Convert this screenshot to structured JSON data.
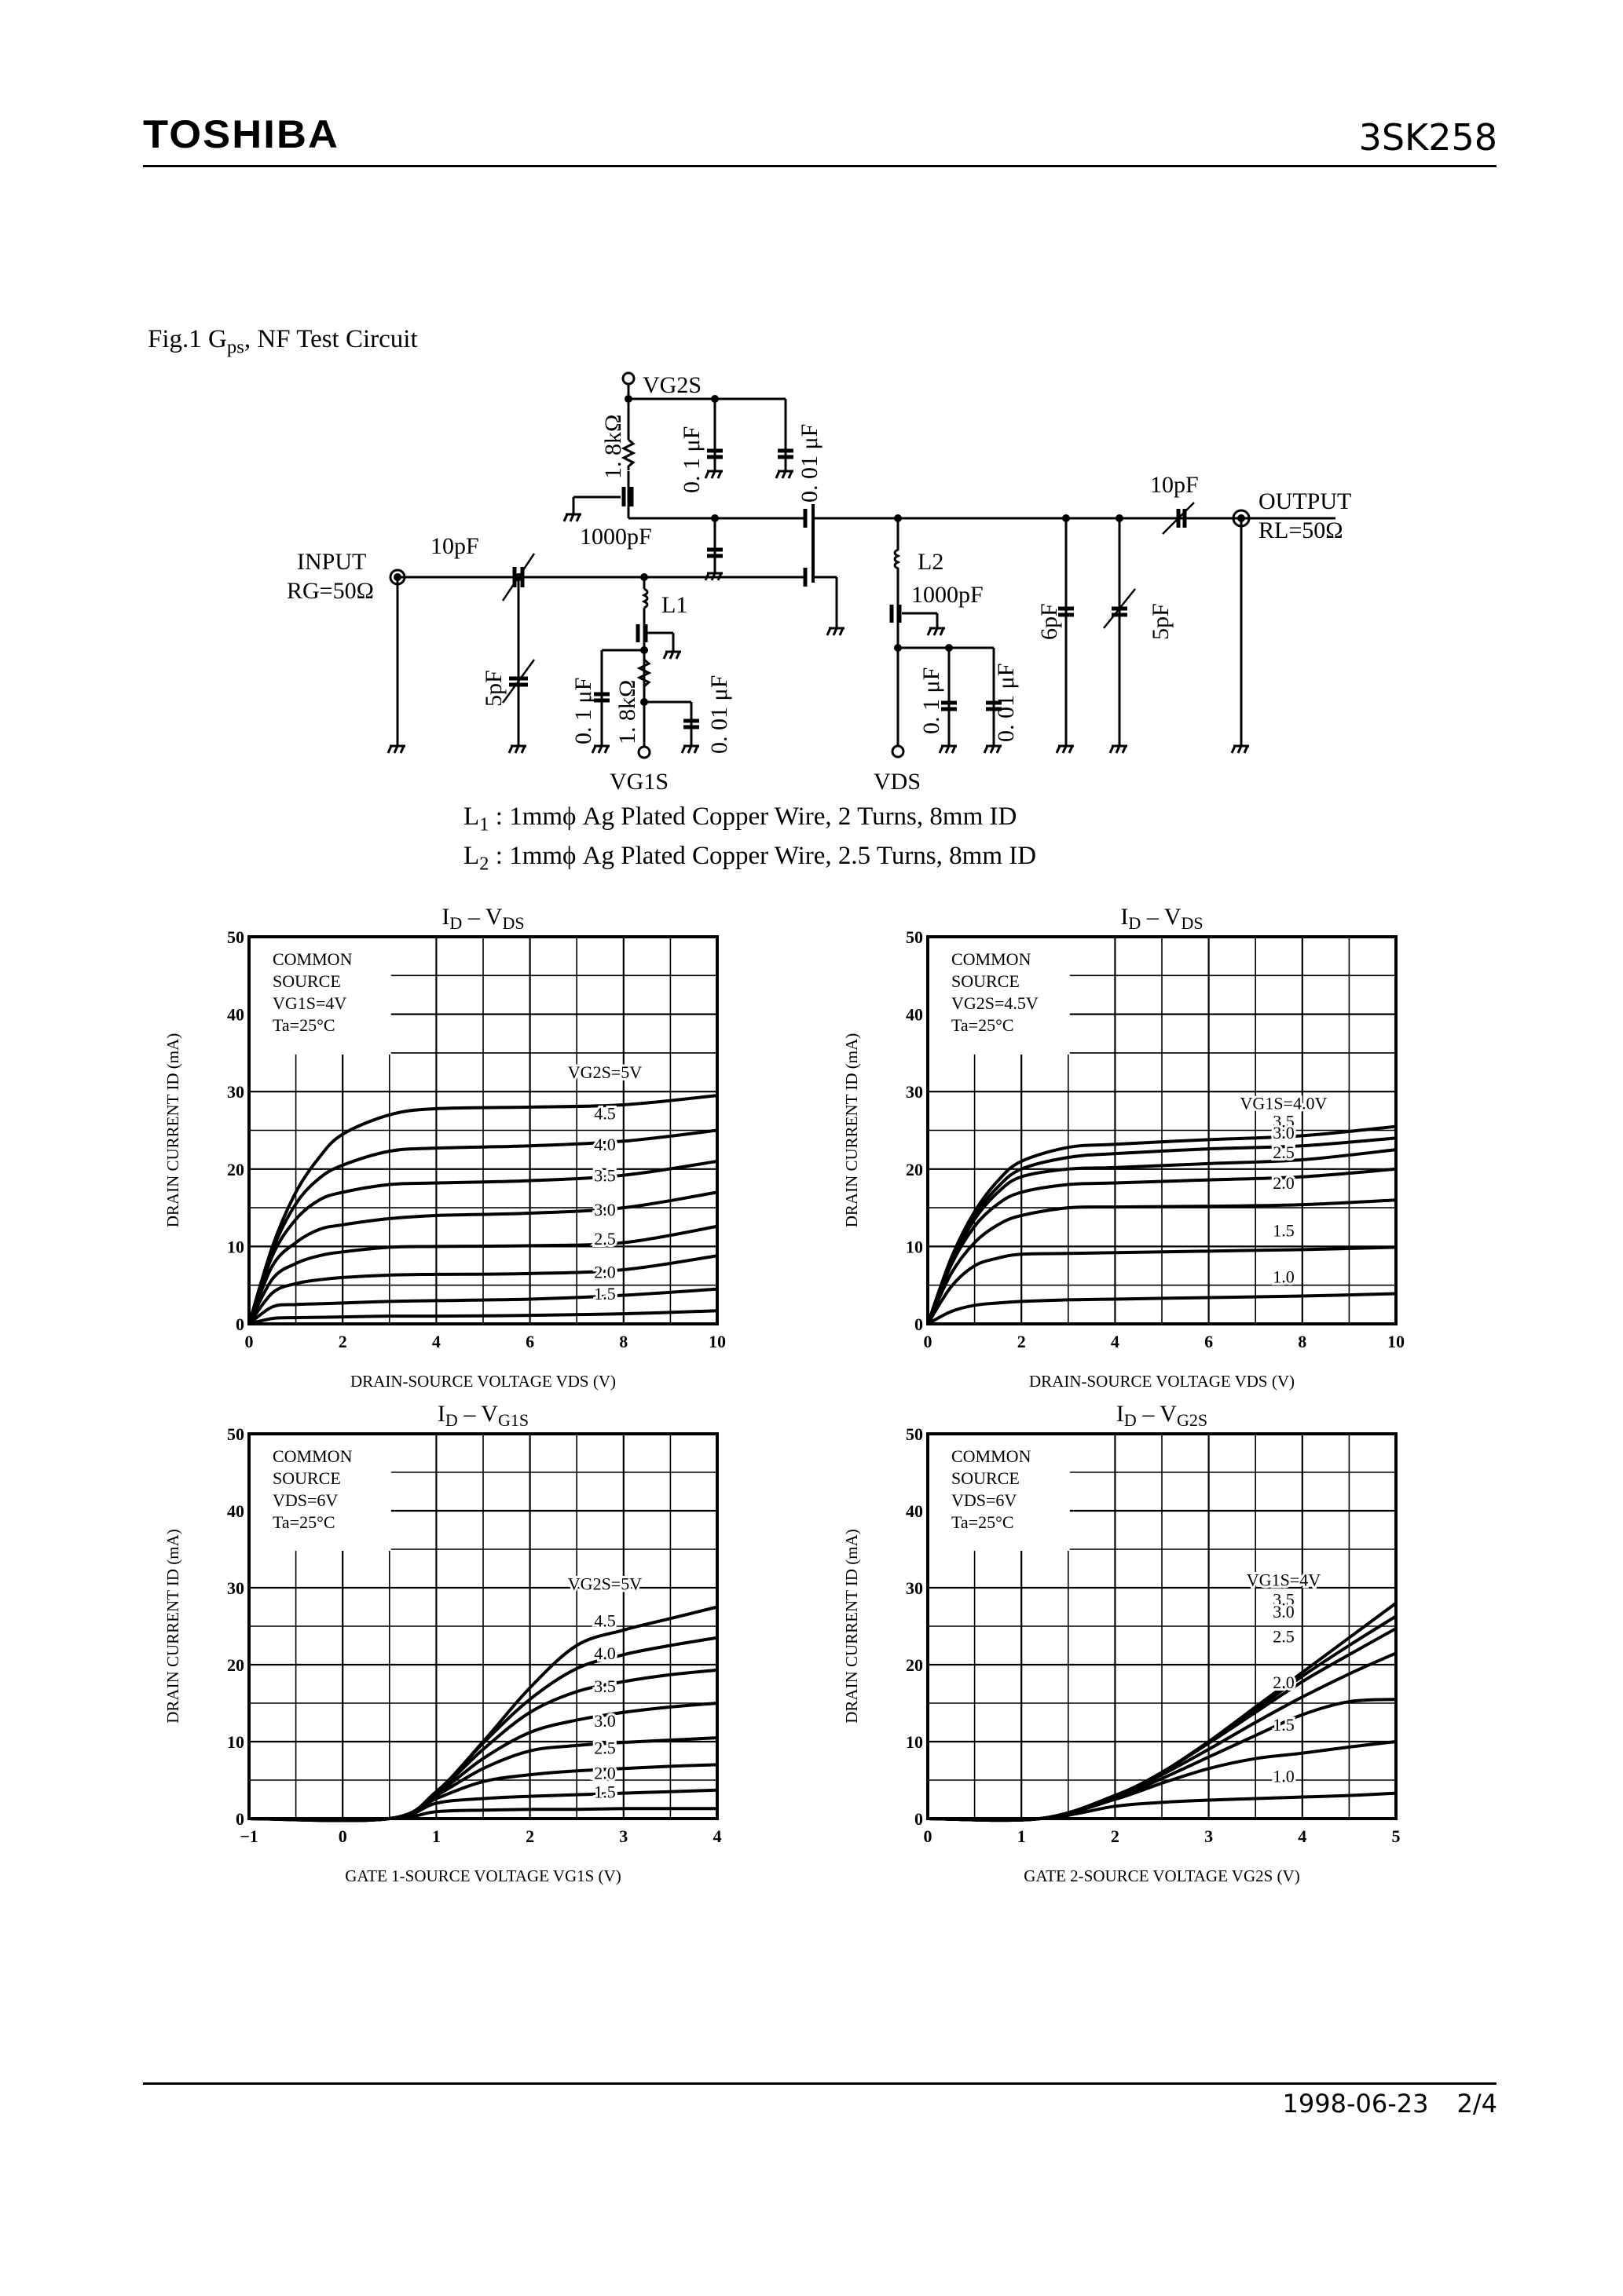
{
  "header": {
    "brand": "TOSHIBA",
    "part_number": "3SK258"
  },
  "figure": {
    "title": "Fig.1 Gps, NF Test Circuit",
    "title_main": "Fig.1 G",
    "title_sub": "ps",
    "title_rest": ", NF Test Circuit",
    "labels": {
      "input": "INPUT",
      "rg": "RG=50Ω",
      "output": "OUTPUT",
      "rl": "RL=50Ω",
      "vg2s": "VG2S",
      "vg1s": "VG1S",
      "vds": "VDS",
      "c_in": "10pF",
      "c_out": "10pF",
      "c_1000_top": "1000pF",
      "c_1000_bot": "1000pF",
      "r_top": "1. 8kΩ",
      "r_bot": "1. 8kΩ",
      "c01_top": "0. 1 μF",
      "c001_top": "0. 01 μF",
      "c01_g1": "0. 1 μF",
      "c001_g1": "0. 01 μF",
      "c01_d": "0. 1 μF",
      "c001_d": "0. 01 μF",
      "c5_in": "5pF",
      "c6_out": "6pF",
      "c5_out": "5pF",
      "l1": "L1",
      "l2": "L2"
    },
    "notes": [
      {
        "sym": "L",
        "sub": "1",
        "text": " : 1mmϕ Ag Plated Copper Wire, 2 Turns, 8mm ID"
      },
      {
        "sym": "L",
        "sub": "2",
        "text": " : 1mmϕ Ag Plated Copper Wire, 2.5 Turns, 8mm ID"
      }
    ]
  },
  "chart_data": [
    {
      "id": "id_vds_vg2s",
      "type": "line",
      "title": "ID – VDS",
      "title_main": "I",
      "title_sub1": "D",
      "title_mid": " – V",
      "title_sub2": "DS",
      "xlabel": "DRAIN-SOURCE VOLTAGE VDS (V)",
      "ylabel": "DRAIN CURRENT ID (mA)",
      "xlim": [
        0,
        10
      ],
      "ylim": [
        0,
        50
      ],
      "xticks": [
        0,
        2,
        4,
        6,
        8,
        10
      ],
      "yticks": [
        0,
        10,
        20,
        30,
        40,
        50
      ],
      "grid": true,
      "conditions": [
        "COMMON",
        "SOURCE",
        "VG1S=4V",
        "Ta=25°C"
      ],
      "x": [
        0,
        0.5,
        1,
        1.5,
        2,
        3,
        4,
        6,
        8,
        10
      ],
      "series": [
        {
          "name": "VG2S=5V",
          "label": "VG2S=5V",
          "values": [
            0,
            10,
            17,
            21.5,
            24.5,
            27,
            27.8,
            28,
            28.3,
            29.5
          ]
        },
        {
          "name": "4.5",
          "label": "4.5",
          "values": [
            0,
            9.5,
            15.5,
            18.8,
            20.5,
            22.3,
            22.7,
            23,
            23.6,
            25
          ]
        },
        {
          "name": "4.0",
          "label": "4.0",
          "values": [
            0,
            8.8,
            13.5,
            16,
            17,
            18,
            18.2,
            18.5,
            19.2,
            21
          ]
        },
        {
          "name": "3.5",
          "label": "3.5",
          "values": [
            0,
            7.5,
            10.5,
            12.2,
            12.8,
            13.6,
            14,
            14.3,
            15,
            17
          ]
        },
        {
          "name": "3.0",
          "label": "3.0",
          "values": [
            0,
            5.8,
            7.8,
            8.8,
            9.3,
            9.9,
            10,
            10.1,
            10.5,
            12.6
          ]
        },
        {
          "name": "2.5",
          "label": "2.5",
          "values": [
            0,
            4,
            5.2,
            5.7,
            6,
            6.3,
            6.4,
            6.5,
            7,
            8.8
          ]
        },
        {
          "name": "2.0",
          "label": "2.0",
          "values": [
            0,
            2.2,
            2.5,
            2.6,
            2.7,
            2.9,
            3,
            3.2,
            3.7,
            4.5
          ]
        },
        {
          "name": "1.5",
          "label": "1.5",
          "values": [
            0,
            0.7,
            0.8,
            0.85,
            0.9,
            1,
            1,
            1.1,
            1.3,
            1.7
          ]
        }
      ]
    },
    {
      "id": "id_vds_vg1s",
      "type": "line",
      "title": "ID – VDS",
      "title_main": "I",
      "title_sub1": "D",
      "title_mid": " – V",
      "title_sub2": "DS",
      "xlabel": "DRAIN-SOURCE VOLTAGE VDS (V)",
      "ylabel": "DRAIN CURRENT ID (mA)",
      "xlim": [
        0,
        10
      ],
      "ylim": [
        0,
        50
      ],
      "xticks": [
        0,
        2,
        4,
        6,
        8,
        10
      ],
      "yticks": [
        0,
        10,
        20,
        30,
        40,
        50
      ],
      "grid": true,
      "conditions": [
        "COMMON",
        "SOURCE",
        "VG2S=4.5V",
        "Ta=25°C"
      ],
      "x": [
        0,
        0.5,
        1,
        1.5,
        2,
        3,
        4,
        6,
        8,
        10
      ],
      "series": [
        {
          "name": "VG1S=4.0V",
          "label": "VG1S=4.0V",
          "values": [
            0,
            8.5,
            14.5,
            18.5,
            21,
            22.8,
            23.2,
            23.8,
            24.3,
            25.5
          ]
        },
        {
          "name": "3.5",
          "label": "3.5",
          "values": [
            0,
            8.3,
            14,
            17.7,
            20,
            21.5,
            22,
            22.6,
            23,
            24
          ]
        },
        {
          "name": "3.0",
          "label": "3.0",
          "values": [
            0,
            8,
            13.5,
            17,
            19,
            20,
            20.2,
            20.7,
            21.2,
            22.5
          ]
        },
        {
          "name": "2.5",
          "label": "2.5",
          "values": [
            0,
            7.6,
            12.6,
            15.5,
            17,
            18,
            18.2,
            18.6,
            19,
            20
          ]
        },
        {
          "name": "2.0",
          "label": "2.0",
          "values": [
            0,
            6.5,
            10.5,
            12.8,
            14,
            15,
            15.1,
            15.2,
            15.4,
            16
          ]
        },
        {
          "name": "1.5",
          "label": "1.5",
          "values": [
            0,
            4.8,
            7.5,
            8.5,
            9,
            9.1,
            9.2,
            9.4,
            9.6,
            9.9
          ]
        },
        {
          "name": "1.0",
          "label": "1.0",
          "values": [
            0,
            1.6,
            2.4,
            2.7,
            2.9,
            3.1,
            3.2,
            3.4,
            3.6,
            3.9
          ]
        }
      ]
    },
    {
      "id": "id_vg1s",
      "type": "line",
      "title": "ID – VG1S",
      "title_main": "I",
      "title_sub1": "D",
      "title_mid": " – V",
      "title_sub2": "G1S",
      "xlabel": "GATE 1-SOURCE VOLTAGE VG1S (V)",
      "ylabel": "DRAIN CURRENT ID (mA)",
      "xlim": [
        -1,
        4
      ],
      "ylim": [
        0,
        50
      ],
      "xticks": [
        -1,
        0,
        1,
        2,
        3,
        4
      ],
      "yticks": [
        0,
        10,
        20,
        30,
        40,
        50
      ],
      "grid": true,
      "conditions": [
        "COMMON",
        "SOURCE",
        "VDS=6V",
        "Ta=25°C"
      ],
      "x": [
        -1,
        0.5,
        1,
        1.5,
        2,
        2.5,
        3,
        3.5,
        4
      ],
      "series": [
        {
          "name": "VG2S=5V",
          "label": "VG2S=5V",
          "values": [
            0,
            0,
            3.5,
            10,
            17,
            22.5,
            24.5,
            26,
            27.5
          ]
        },
        {
          "name": "4.5",
          "label": "4.5",
          "values": [
            0,
            0,
            3.5,
            9.8,
            15.5,
            19.5,
            21.3,
            22.5,
            23.5
          ]
        },
        {
          "name": "4.0",
          "label": "4.0",
          "values": [
            0,
            0,
            3.4,
            9,
            13.8,
            16.5,
            17.8,
            18.7,
            19.3
          ]
        },
        {
          "name": "3.5",
          "label": "3.5",
          "values": [
            0,
            0,
            3.2,
            7.8,
            11.2,
            12.8,
            13.8,
            14.5,
            15
          ]
        },
        {
          "name": "3.0",
          "label": "3.0",
          "values": [
            0,
            0,
            3,
            6.5,
            8.8,
            9.5,
            9.9,
            10.2,
            10.5
          ]
        },
        {
          "name": "2.5",
          "label": "2.5",
          "values": [
            0,
            0,
            2.6,
            4.8,
            5.7,
            6.2,
            6.5,
            6.8,
            7
          ]
        },
        {
          "name": "2.0",
          "label": "2.0",
          "values": [
            0,
            0,
            2,
            2.6,
            2.9,
            3.1,
            3.3,
            3.5,
            3.7
          ]
        },
        {
          "name": "1.5",
          "label": "1.5",
          "values": [
            0,
            0,
            0.9,
            1.1,
            1.2,
            1.2,
            1.3,
            1.3,
            1.3
          ]
        }
      ]
    },
    {
      "id": "id_vg2s",
      "type": "line",
      "title": "ID – VG2S",
      "title_main": "I",
      "title_sub1": "D",
      "title_mid": " – V",
      "title_sub2": "G2S",
      "xlabel": "GATE 2-SOURCE VOLTAGE VG2S (V)",
      "ylabel": "DRAIN CURRENT ID (mA)",
      "xlim": [
        0,
        5
      ],
      "ylim": [
        0,
        50
      ],
      "xticks": [
        0,
        1,
        2,
        3,
        4,
        5
      ],
      "yticks": [
        0,
        10,
        20,
        30,
        40,
        50
      ],
      "grid": true,
      "conditions": [
        "COMMON",
        "SOURCE",
        "VDS=6V",
        "Ta=25°C"
      ],
      "x": [
        0,
        1.2,
        2,
        2.5,
        3,
        3.5,
        4,
        4.5,
        5
      ],
      "series": [
        {
          "name": "VG1S=4V",
          "label": "VG1S=4V",
          "values": [
            0,
            0,
            3,
            6,
            10,
            14.5,
            19,
            23.5,
            28
          ]
        },
        {
          "name": "3.5",
          "label": "3.5",
          "values": [
            0,
            0,
            3,
            6,
            10,
            14.2,
            18.5,
            22.5,
            26.3
          ]
        },
        {
          "name": "3.0",
          "label": "3.0",
          "values": [
            0,
            0,
            3,
            6,
            9.8,
            13.8,
            17.8,
            21.3,
            24.7
          ]
        },
        {
          "name": "2.5",
          "label": "2.5",
          "values": [
            0,
            0,
            2.8,
            5.7,
            9,
            12.5,
            15.8,
            18.8,
            21.5
          ]
        },
        {
          "name": "2.0",
          "label": "2.0",
          "values": [
            0,
            0,
            2.7,
            5.2,
            8,
            10.8,
            13.5,
            15.2,
            15.5
          ]
        },
        {
          "name": "1.5",
          "label": "1.5",
          "values": [
            0,
            0,
            2.5,
            4.6,
            6.5,
            7.8,
            8.5,
            9.3,
            10
          ]
        },
        {
          "name": "1.0",
          "label": "1.0",
          "values": [
            0,
            0,
            1.6,
            2.1,
            2.4,
            2.6,
            2.8,
            3,
            3.3
          ]
        }
      ]
    }
  ],
  "footer": {
    "date": "1998-06-23",
    "page": "2/4"
  }
}
